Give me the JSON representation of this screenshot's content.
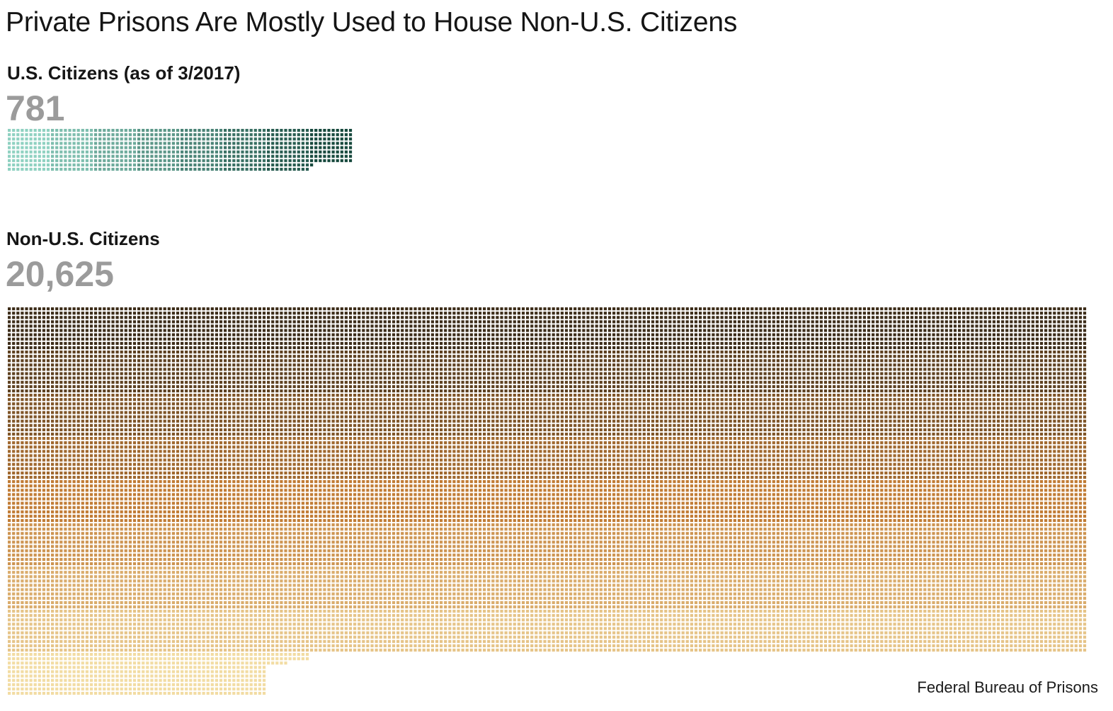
{
  "title": "Private Prisons Are Mostly Used to House Non-U.S. Citizens",
  "source": "Federal Bureau of Prisons",
  "colors": {
    "us_light": "#8fd1c1",
    "us_dark": "#17493d",
    "nonus_dark": "#3d2d1a",
    "nonus_mid": "#c17c35",
    "nonus_light": "#f2dca3",
    "value_text": "#9b9b9b"
  },
  "chart_data": {
    "type": "waffle",
    "title": "Private Prisons Are Mostly Used to House Non-U.S. Citizens",
    "units_per_block": 100,
    "block_grid": "10x10",
    "series": [
      {
        "name": "U.S. Citizens (as of 3/2017)",
        "display_value": "781",
        "value": 781,
        "color_scale": [
          "#8fd1c1",
          "#17493d"
        ]
      },
      {
        "name": "Non-U.S. Citizens",
        "display_value": "20,625",
        "value": 20625,
        "color_scale": [
          "#3d2d1a",
          "#c17c35",
          "#f2dca3"
        ]
      }
    ]
  }
}
